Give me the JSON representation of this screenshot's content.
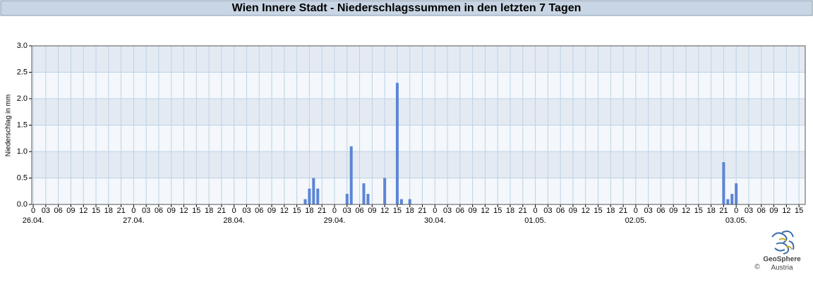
{
  "chart_data": {
    "type": "bar",
    "title": "Wien Innere Stadt - Niederschlagssummen in den letzten 7 Tagen",
    "ylabel": "Niederschlag in mm",
    "x": [
      65,
      66,
      67,
      68,
      75,
      76,
      79,
      80,
      84,
      87,
      88,
      90,
      165,
      166,
      167,
      168
    ],
    "values": [
      0.1,
      0.3,
      0.5,
      0.3,
      0.2,
      1.1,
      0.4,
      0.2,
      0.5,
      2.3,
      0.1,
      0.1,
      0.8,
      0.1,
      0.2,
      0.4
    ],
    "color": "#5b85d6",
    "xlim": [
      -0.35,
      184.5
    ],
    "xticks": [
      {
        "value": 0,
        "label": "0"
      },
      {
        "value": 3,
        "label": "03"
      },
      {
        "value": 6,
        "label": "06"
      },
      {
        "value": 9,
        "label": "09"
      },
      12,
      15,
      18,
      21,
      {
        "value": 24,
        "label": "0"
      },
      {
        "value": 27,
        "label": "03"
      },
      {
        "value": 30,
        "label": "06"
      },
      {
        "value": 33,
        "label": "09"
      },
      {
        "value": 36,
        "label": "12"
      },
      {
        "value": 39,
        "label": "15"
      },
      {
        "value": 42,
        "label": "18"
      },
      {
        "value": 45,
        "label": "21"
      },
      {
        "value": 48,
        "label": "0"
      },
      {
        "value": 51,
        "label": "03"
      },
      {
        "value": 54,
        "label": "06"
      },
      {
        "value": 57,
        "label": "09"
      },
      {
        "value": 60,
        "label": "12"
      },
      {
        "value": 63,
        "label": "15"
      },
      {
        "value": 66,
        "label": "18"
      },
      {
        "value": 69,
        "label": "21"
      },
      {
        "value": 72,
        "label": "0"
      },
      {
        "value": 75,
        "label": "03"
      },
      {
        "value": 78,
        "label": "06"
      },
      {
        "value": 81,
        "label": "09"
      },
      {
        "value": 84,
        "label": "12"
      },
      {
        "value": 87,
        "label": "15"
      },
      {
        "value": 90,
        "label": "18"
      },
      {
        "value": 93,
        "label": "21"
      },
      {
        "value": 96,
        "label": "0"
      },
      {
        "value": 99,
        "label": "03"
      },
      {
        "value": 102,
        "label": "06"
      },
      {
        "value": 105,
        "label": "09"
      },
      {
        "value": 108,
        "label": "12"
      },
      {
        "value": 111,
        "label": "15"
      },
      {
        "value": 114,
        "label": "18"
      },
      {
        "value": 117,
        "label": "21"
      },
      {
        "value": 120,
        "label": "0"
      },
      {
        "value": 123,
        "label": "03"
      },
      {
        "value": 126,
        "label": "06"
      },
      {
        "value": 129,
        "label": "09"
      },
      {
        "value": 132,
        "label": "12"
      },
      {
        "value": 135,
        "label": "15"
      },
      {
        "value": 138,
        "label": "18"
      },
      {
        "value": 141,
        "label": "21"
      },
      {
        "value": 144,
        "label": "0"
      },
      {
        "value": 147,
        "label": "03"
      },
      {
        "value": 150,
        "label": "06"
      },
      {
        "value": 153,
        "label": "09"
      },
      {
        "value": 156,
        "label": "12"
      },
      {
        "value": 159,
        "label": "15"
      },
      {
        "value": 162,
        "label": "18"
      },
      {
        "value": 165,
        "label": "21"
      },
      {
        "value": 168,
        "label": "0"
      },
      {
        "value": 171,
        "label": "03"
      },
      {
        "value": 174,
        "label": "06"
      },
      {
        "value": 177,
        "label": "09"
      },
      {
        "value": 180,
        "label": "12"
      },
      {
        "value": 183,
        "label": "15"
      }
    ],
    "xdays": [
      {
        "value": 0,
        "label": "26.04."
      },
      {
        "value": 24,
        "label": "27.04."
      },
      {
        "value": 48,
        "label": "28.04."
      },
      {
        "value": 72,
        "label": "29.04."
      },
      {
        "value": 96,
        "label": "30.04."
      },
      {
        "value": 120,
        "label": "01.05."
      },
      {
        "value": 144,
        "label": "02.05."
      },
      {
        "value": 168,
        "label": "03.05."
      }
    ],
    "ylim": [
      0,
      3
    ],
    "yticks": [
      {
        "value": 0,
        "label": "0.0"
      },
      {
        "value": 0.5,
        "label": "0.5"
      },
      {
        "value": 1,
        "label": "1.0"
      },
      {
        "value": 1.5,
        "label": "1.5"
      },
      {
        "value": 2,
        "label": "2.0"
      },
      {
        "value": 2.5,
        "label": "2.5"
      },
      {
        "value": 3,
        "label": "3.0"
      }
    ],
    "grid": true
  },
  "logo": {
    "name": "GeoSphere",
    "sub": "Austria",
    "copyright": "©"
  }
}
